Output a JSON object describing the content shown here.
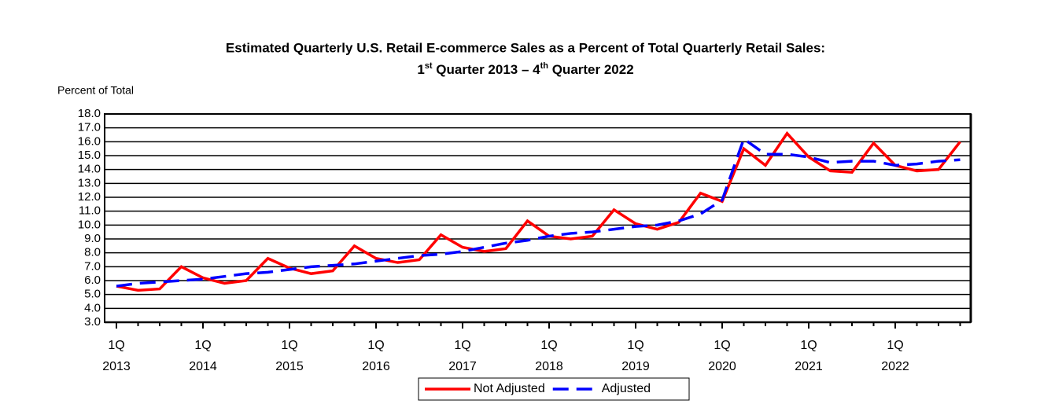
{
  "chart_data": {
    "type": "line",
    "title": "Estimated Quarterly U.S. Retail E-commerce Sales as a Percent of Total Quarterly Retail Sales:",
    "subtitle_parts": [
      "1",
      "st",
      " Quarter 2013 – 4",
      "th",
      " Quarter 2022"
    ],
    "y_axis_label": "Percent of Total",
    "categories": [
      [
        "1Q",
        "2013"
      ],
      null,
      null,
      null,
      [
        "1Q",
        "2014"
      ],
      null,
      null,
      null,
      [
        "1Q",
        "2015"
      ],
      null,
      null,
      null,
      [
        "1Q",
        "2016"
      ],
      null,
      null,
      null,
      [
        "1Q",
        "2017"
      ],
      null,
      null,
      null,
      [
        "1Q",
        "2018"
      ],
      null,
      null,
      null,
      [
        "1Q",
        "2019"
      ],
      null,
      null,
      null,
      [
        "1Q",
        "2020"
      ],
      null,
      null,
      null,
      [
        "1Q",
        "2021"
      ],
      null,
      null,
      null,
      [
        "1Q",
        "2022"
      ],
      null,
      null,
      null
    ],
    "series": [
      {
        "name": "Not Adjusted",
        "color": "#ff0000",
        "dash": false,
        "values": [
          5.6,
          5.3,
          5.4,
          7.0,
          6.2,
          5.8,
          6.0,
          7.6,
          6.9,
          6.5,
          6.7,
          8.5,
          7.6,
          7.3,
          7.5,
          9.3,
          8.4,
          8.1,
          8.3,
          10.3,
          9.2,
          9.0,
          9.2,
          11.1,
          10.1,
          9.7,
          10.2,
          12.3,
          11.7,
          15.5,
          14.3,
          16.6,
          14.9,
          13.9,
          13.8,
          15.9,
          14.3,
          13.9,
          14.0,
          16.0
        ]
      },
      {
        "name": "Adjusted",
        "color": "#0000ff",
        "dash": true,
        "values": [
          5.6,
          5.8,
          5.9,
          6.0,
          6.1,
          6.3,
          6.5,
          6.6,
          6.8,
          7.0,
          7.1,
          7.2,
          7.4,
          7.6,
          7.8,
          7.9,
          8.1,
          8.4,
          8.7,
          8.9,
          9.2,
          9.4,
          9.5,
          9.7,
          9.9,
          10.0,
          10.3,
          10.8,
          11.8,
          16.2,
          15.1,
          15.1,
          14.9,
          14.5,
          14.6,
          14.6,
          14.3,
          14.4,
          14.6,
          14.7
        ]
      }
    ],
    "ylim": [
      3,
      18
    ],
    "yticks": [
      {
        "value": 3,
        "label": "3.0"
      },
      {
        "value": 4,
        "label": "4.0"
      },
      {
        "value": 5,
        "label": "5.0"
      },
      {
        "value": 6,
        "label": "6.0"
      },
      {
        "value": 7,
        "label": "7.0"
      },
      {
        "value": 8,
        "label": "8.0"
      },
      {
        "value": 9,
        "label": "9.0"
      },
      {
        "value": 10,
        "label": "10.0"
      },
      {
        "value": 11,
        "label": "11.0"
      },
      {
        "value": 12,
        "label": "12.0"
      },
      {
        "value": 13,
        "label": "13.0"
      },
      {
        "value": 14,
        "label": "14.0"
      },
      {
        "value": 15,
        "label": "15.0"
      },
      {
        "value": 16,
        "label": "16.0"
      },
      {
        "value": 17,
        "label": "17.0"
      },
      {
        "value": 18,
        "label": "18.0"
      }
    ],
    "grid": true,
    "legend": "bottom"
  }
}
